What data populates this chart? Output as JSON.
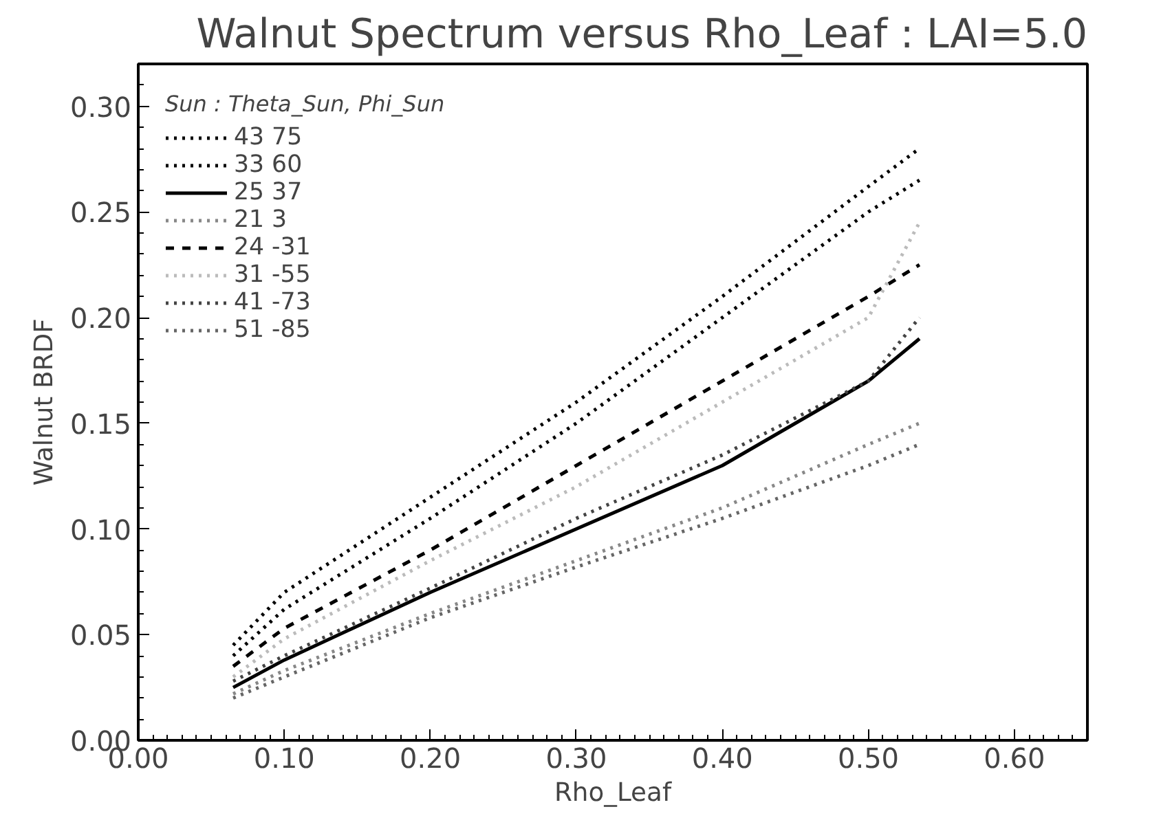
{
  "chart_data": {
    "type": "line",
    "title": "Walnut Spectrum versus Rho_Leaf : LAI=5.0",
    "xlabel": "Rho_Leaf",
    "ylabel": "Walnut BRDF",
    "legend_title": "Sun : Theta_Sun, Phi_Sun",
    "x": [
      0.065,
      0.1,
      0.2,
      0.3,
      0.4,
      0.5,
      0.535
    ],
    "series": [
      {
        "name": "43 75",
        "color": "#000000",
        "line_style": "dotted",
        "values": [
          0.045,
          0.07,
          0.115,
          0.16,
          0.21,
          0.262,
          0.28
        ]
      },
      {
        "name": "33 60",
        "color": "#000000",
        "line_style": "dotted",
        "values": [
          0.04,
          0.062,
          0.105,
          0.15,
          0.2,
          0.25,
          0.265
        ]
      },
      {
        "name": "25 37",
        "color": "#000000",
        "line_style": "solid",
        "values": [
          0.025,
          0.038,
          0.07,
          0.1,
          0.13,
          0.17,
          0.19
        ]
      },
      {
        "name": "21 3",
        "color": "#888888",
        "line_style": "dotted",
        "values": [
          0.022,
          0.033,
          0.06,
          0.085,
          0.11,
          0.14,
          0.15
        ]
      },
      {
        "name": "24 -31",
        "color": "#000000",
        "line_style": "dashed",
        "values": [
          0.035,
          0.053,
          0.09,
          0.13,
          0.17,
          0.21,
          0.225
        ]
      },
      {
        "name": "31 -55",
        "color": "#bbbbbb",
        "line_style": "dotted",
        "values": [
          0.03,
          0.048,
          0.085,
          0.12,
          0.16,
          0.2,
          0.245
        ]
      },
      {
        "name": "41 -73",
        "color": "#444444",
        "line_style": "dotted",
        "values": [
          0.028,
          0.04,
          0.072,
          0.105,
          0.135,
          0.17,
          0.2
        ]
      },
      {
        "name": "51 -85",
        "color": "#666666",
        "line_style": "dotted",
        "values": [
          0.02,
          0.03,
          0.058,
          0.082,
          0.105,
          0.13,
          0.14
        ]
      }
    ],
    "xlim": [
      0.0,
      0.65
    ],
    "ylim": [
      0.0,
      0.32
    ],
    "xticks": [
      {
        "value": 0.0,
        "label": "0.00"
      },
      {
        "value": 0.1,
        "label": "0.10"
      },
      {
        "value": 0.2,
        "label": "0.20"
      },
      {
        "value": 0.3,
        "label": "0.30"
      },
      {
        "value": 0.4,
        "label": "0.40"
      },
      {
        "value": 0.5,
        "label": "0.50"
      },
      {
        "value": 0.6,
        "label": "0.60"
      }
    ],
    "yticks": [
      {
        "value": 0.0,
        "label": "0.00"
      },
      {
        "value": 0.05,
        "label": "0.05"
      },
      {
        "value": 0.1,
        "label": "0.10"
      },
      {
        "value": 0.15,
        "label": "0.15"
      },
      {
        "value": 0.2,
        "label": "0.20"
      },
      {
        "value": 0.25,
        "label": "0.25"
      },
      {
        "value": 0.3,
        "label": "0.30"
      }
    ],
    "grid": false,
    "legend": "top left"
  }
}
